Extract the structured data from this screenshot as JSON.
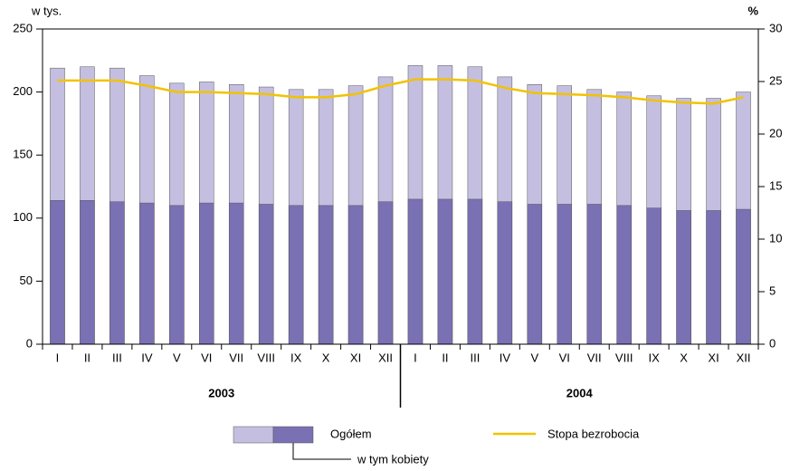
{
  "chart_data": {
    "type": "bar-line",
    "y_label": "w tys.",
    "y2_label": "%",
    "categories": [
      "I",
      "II",
      "III",
      "IV",
      "V",
      "VI",
      "VII",
      "VIII",
      "IX",
      "X",
      "XI",
      "XII",
      "I",
      "II",
      "III",
      "IV",
      "V",
      "VI",
      "VII",
      "VIII",
      "IX",
      "X",
      "XI",
      "XII"
    ],
    "year_groups": [
      "2003",
      "2004"
    ],
    "series": [
      {
        "name": "Ogółem",
        "color": "#c4bfe0",
        "type": "bar",
        "values": [
          219,
          220,
          219,
          213,
          207,
          208,
          206,
          204,
          202,
          202,
          205,
          212,
          221,
          221,
          220,
          212,
          206,
          205,
          202,
          200,
          197,
          195,
          195,
          200
        ]
      },
      {
        "name": "w tym kobiety",
        "color": "#7a70b4",
        "type": "bar",
        "values": [
          114,
          114,
          113,
          112,
          110,
          112,
          112,
          111,
          110,
          110,
          110,
          113,
          115,
          115,
          115,
          113,
          111,
          111,
          111,
          110,
          108,
          106,
          106,
          107
        ]
      },
      {
        "name": "Stopa bezrobocia",
        "color": "#f2c200",
        "type": "line",
        "axis": "y2",
        "values": [
          25.1,
          25.1,
          25.1,
          24.6,
          24.0,
          24.0,
          23.9,
          23.8,
          23.5,
          23.5,
          23.8,
          24.6,
          25.2,
          25.2,
          25.1,
          24.4,
          23.9,
          23.8,
          23.7,
          23.5,
          23.2,
          23.0,
          22.9,
          23.5
        ]
      }
    ],
    "ylim": [
      0,
      250
    ],
    "yticks": [
      0,
      50,
      100,
      150,
      200,
      250
    ],
    "y2lim": [
      0,
      30
    ],
    "y2ticks": [
      0,
      5,
      10,
      15,
      20,
      25,
      30
    ]
  }
}
